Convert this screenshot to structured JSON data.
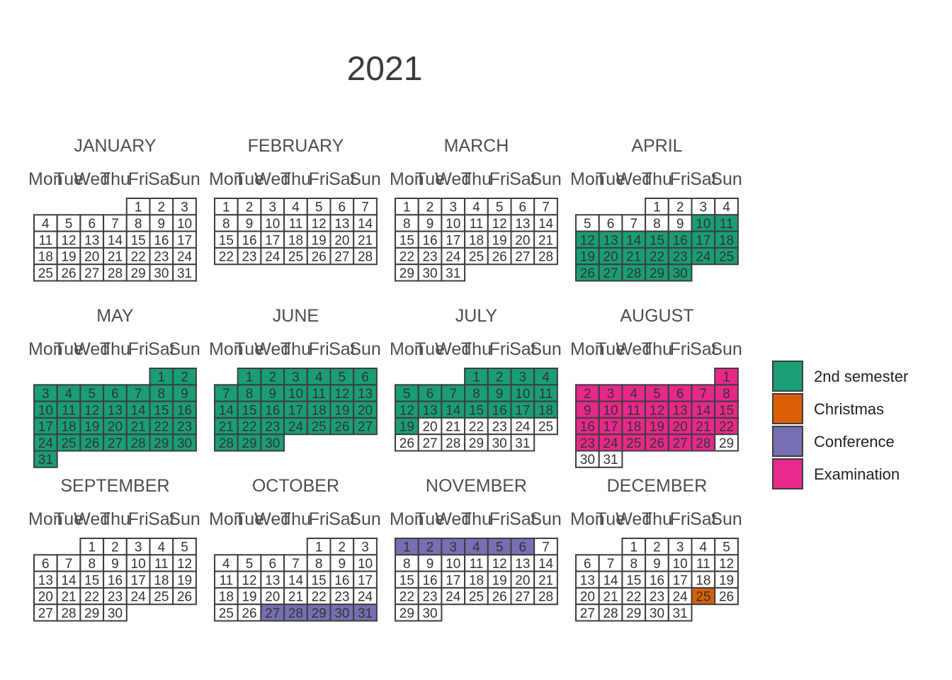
{
  "chart_data": {
    "type": "calendar",
    "title": "2021",
    "year": 2021,
    "weekdays": [
      "Mon",
      "Tue",
      "Wed",
      "Thu",
      "Fri",
      "Sat",
      "Sun"
    ],
    "months": [
      {
        "name": "JANUARY",
        "start_weekday": 4,
        "days": 31
      },
      {
        "name": "FEBRUARY",
        "start_weekday": 0,
        "days": 28
      },
      {
        "name": "MARCH",
        "start_weekday": 0,
        "days": 31
      },
      {
        "name": "APRIL",
        "start_weekday": 3,
        "days": 30
      },
      {
        "name": "MAY",
        "start_weekday": 5,
        "days": 31
      },
      {
        "name": "JUNE",
        "start_weekday": 1,
        "days": 30
      },
      {
        "name": "JULY",
        "start_weekday": 3,
        "days": 31
      },
      {
        "name": "AUGUST",
        "start_weekday": 6,
        "days": 31
      },
      {
        "name": "SEPTEMBER",
        "start_weekday": 2,
        "days": 30
      },
      {
        "name": "OCTOBER",
        "start_weekday": 4,
        "days": 31
      },
      {
        "name": "NOVEMBER",
        "start_weekday": 0,
        "days": 30
      },
      {
        "name": "DECEMBER",
        "start_weekday": 2,
        "days": 31
      }
    ],
    "events": [
      {
        "category": "2nd semester",
        "start": "2021-04-10",
        "end": "2021-07-19"
      },
      {
        "category": "Examination",
        "start": "2021-08-01",
        "end": "2021-08-28"
      },
      {
        "category": "Conference",
        "start": "2021-10-27",
        "end": "2021-11-06"
      },
      {
        "category": "Christmas",
        "start": "2021-12-25",
        "end": "2021-12-25"
      }
    ],
    "legend": {
      "position": "right",
      "entries": [
        {
          "label": "2nd semester",
          "color": "#1b9e77"
        },
        {
          "label": "Christmas",
          "color": "#d95f02"
        },
        {
          "label": "Conference",
          "color": "#7570b3"
        },
        {
          "label": "Examination",
          "color": "#e7298a"
        }
      ]
    }
  }
}
